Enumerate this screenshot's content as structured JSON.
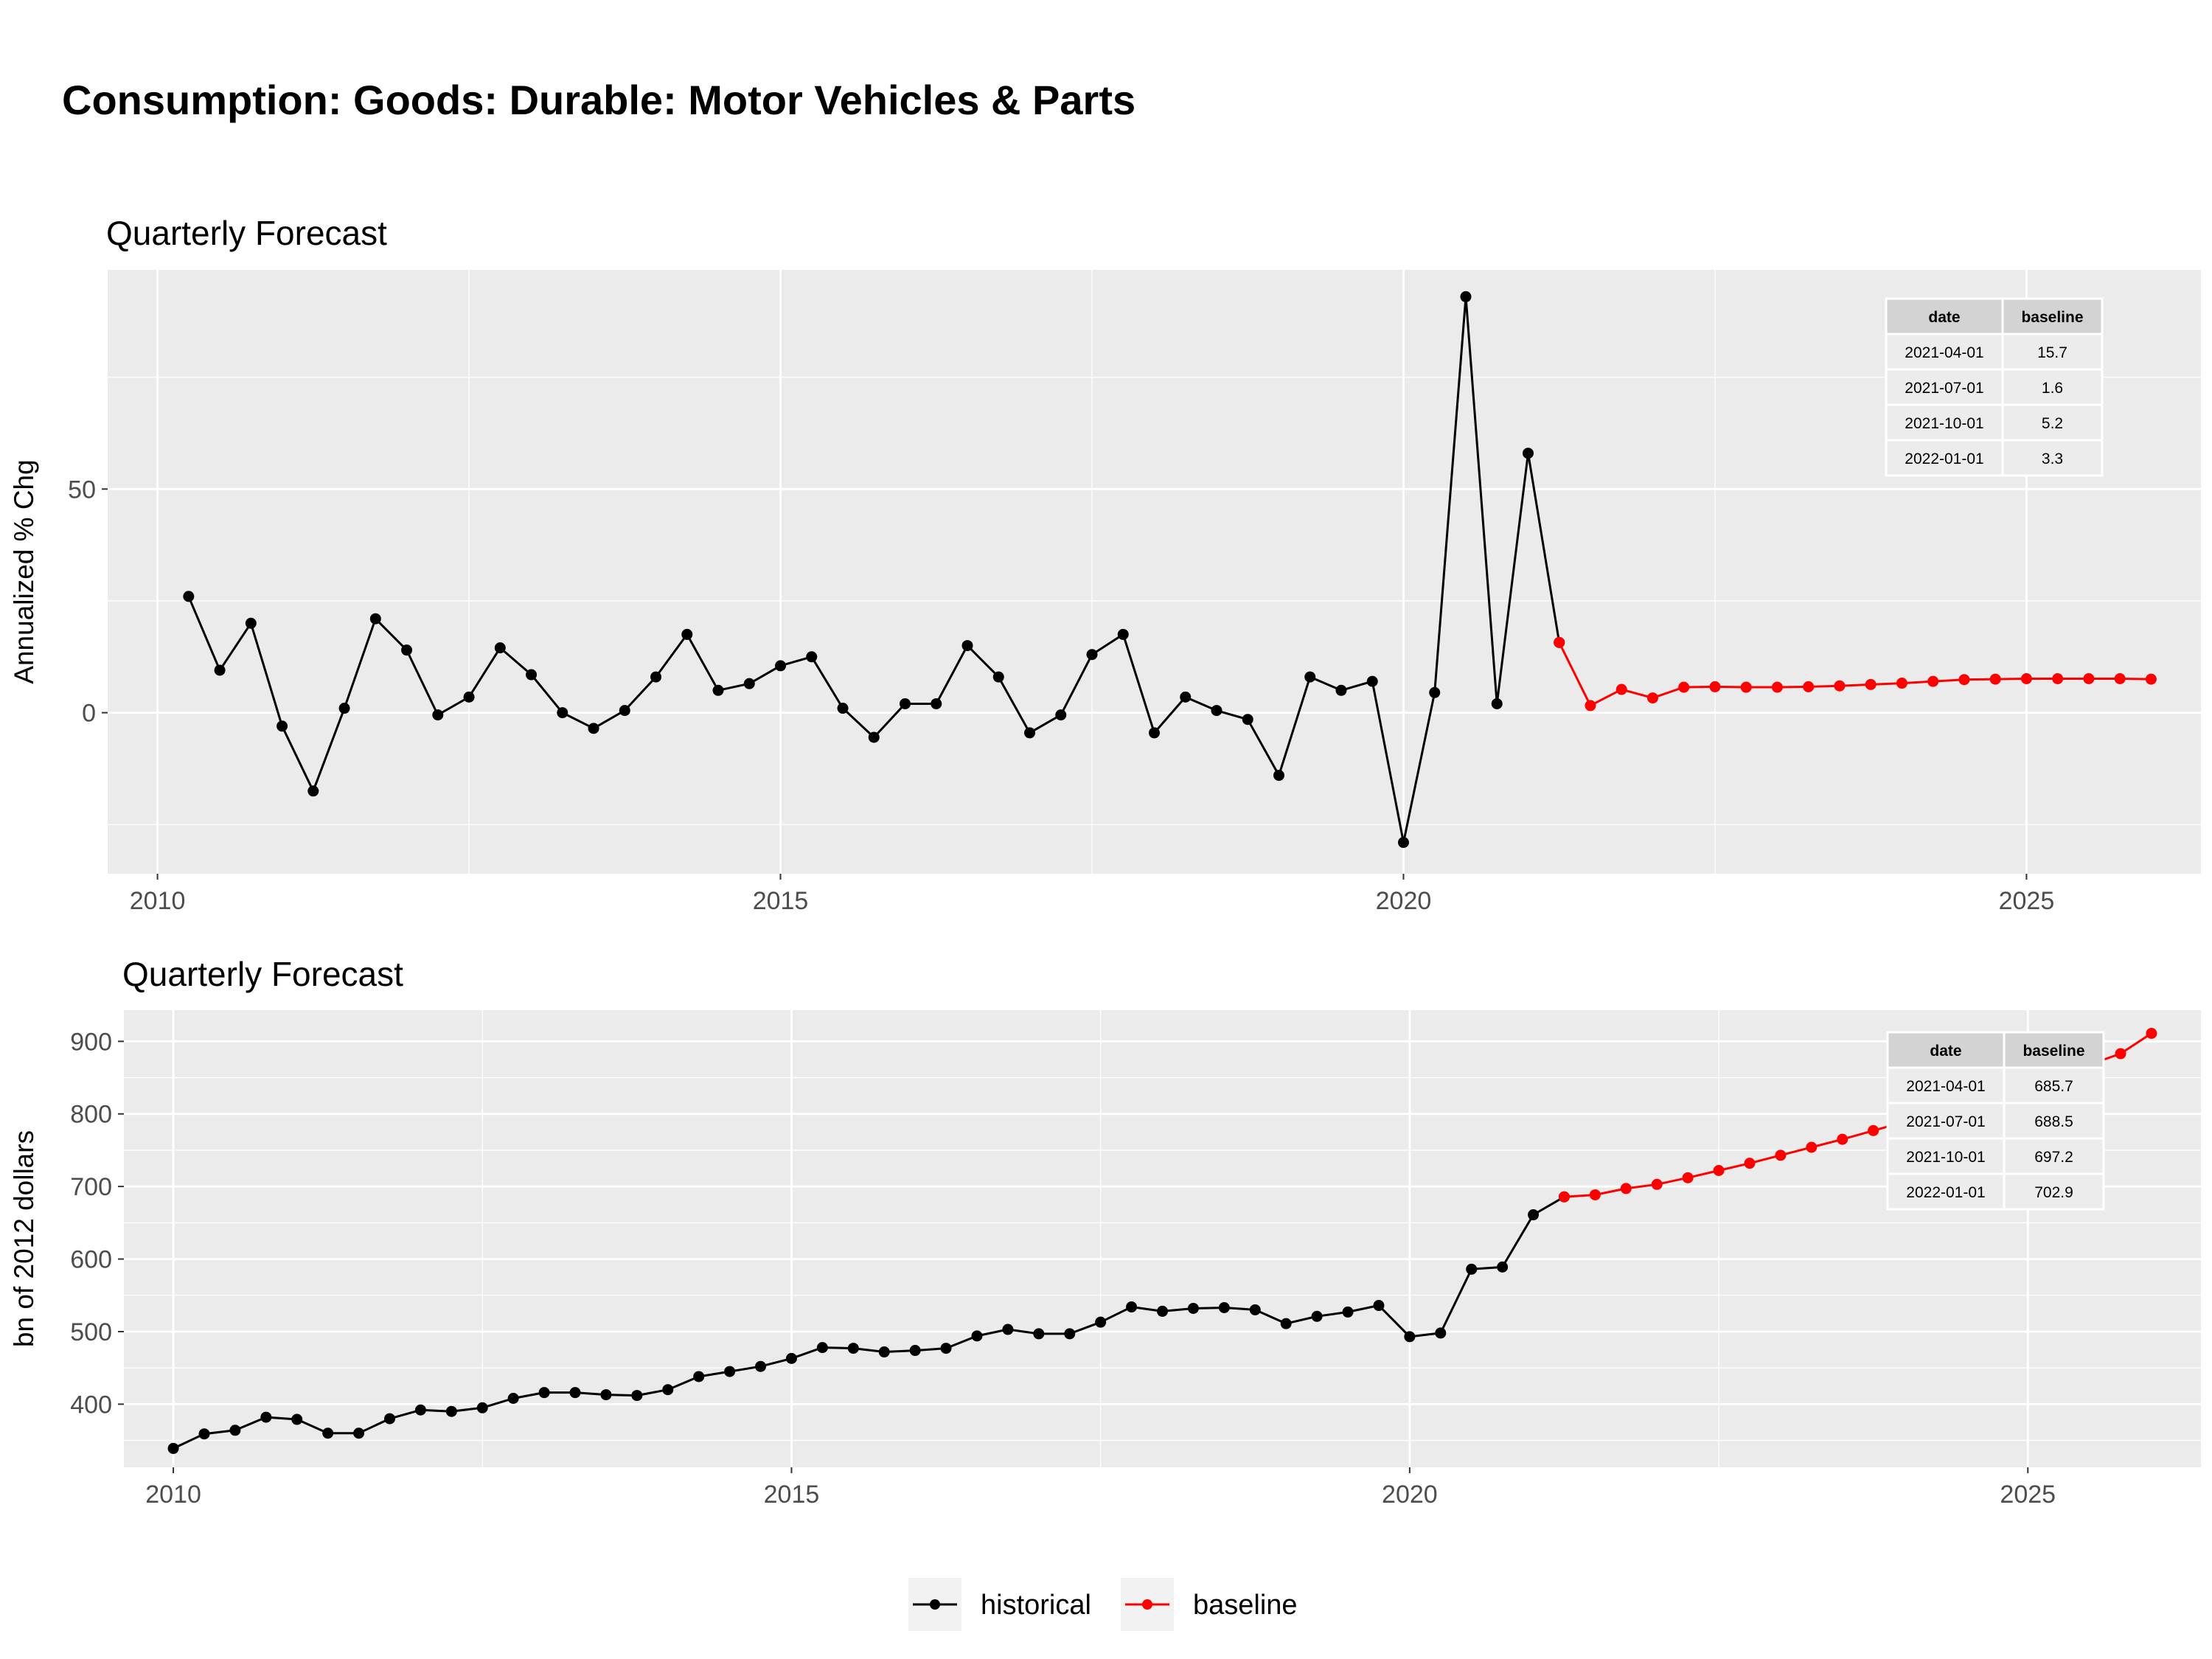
{
  "title": "Consumption: Goods: Durable: Motor Vehicles & Parts",
  "colors": {
    "historical": "#000000",
    "baseline": "#ff0000",
    "panel": "#ebebeb",
    "grid": "#ffffff"
  },
  "legend": [
    {
      "label": "historical",
      "color": "#000000"
    },
    {
      "label": "baseline",
      "color": "#ff0000"
    }
  ],
  "chart_data": [
    {
      "type": "line",
      "title": "Quarterly Forecast",
      "ylabel": "Annualized % Chg",
      "xlabel": "",
      "xlim": [
        2009.6,
        2026.4
      ],
      "ylim": [
        -36,
        99
      ],
      "x_ticks": [
        "2010",
        "2015",
        "2020",
        "2025"
      ],
      "y_ticks": [
        "0",
        "50"
      ],
      "grid": true,
      "series": [
        {
          "name": "historical",
          "x": [
            2010.25,
            2010.5,
            2010.75,
            2011.0,
            2011.25,
            2011.5,
            2011.75,
            2012.0,
            2012.25,
            2012.5,
            2012.75,
            2013.0,
            2013.25,
            2013.5,
            2013.75,
            2014.0,
            2014.25,
            2014.5,
            2014.75,
            2015.0,
            2015.25,
            2015.5,
            2015.75,
            2016.0,
            2016.25,
            2016.5,
            2016.75,
            2017.0,
            2017.25,
            2017.5,
            2017.75,
            2018.0,
            2018.25,
            2018.5,
            2018.75,
            2019.0,
            2019.25,
            2019.5,
            2019.75,
            2020.0,
            2020.25,
            2020.5,
            2020.75,
            2021.0,
            2021.25
          ],
          "values": [
            26,
            9.5,
            20,
            -3,
            -17.5,
            1,
            21,
            14,
            -0.5,
            3.5,
            14.5,
            8.5,
            0,
            -3.5,
            0.5,
            8,
            17.5,
            5,
            6.5,
            10.5,
            12.5,
            1,
            -5.5,
            2,
            2,
            15,
            8,
            -4.5,
            -0.5,
            13,
            17.5,
            -4.5,
            3.5,
            0.5,
            -1.5,
            -14,
            8,
            5,
            7,
            -29,
            4.5,
            93,
            2,
            58,
            15.7
          ]
        },
        {
          "name": "baseline",
          "x": [
            2021.25,
            2021.5,
            2021.75,
            2022.0,
            2022.25,
            2022.5,
            2022.75,
            2023.0,
            2023.25,
            2023.5,
            2023.75,
            2024.0,
            2024.25,
            2024.5,
            2024.75,
            2025.0,
            2025.25,
            2025.5,
            2025.75,
            2026.0
          ],
          "values": [
            15.7,
            1.6,
            5.2,
            3.3,
            5.7,
            5.8,
            5.7,
            5.7,
            5.8,
            6,
            6.3,
            6.6,
            7,
            7.4,
            7.5,
            7.6,
            7.6,
            7.6,
            7.6,
            7.5
          ]
        }
      ],
      "table": {
        "headers": [
          "date",
          "baseline"
        ],
        "rows": [
          [
            "2021-04-01",
            "15.7"
          ],
          [
            "2021-07-01",
            "1.6"
          ],
          [
            "2021-10-01",
            "5.2"
          ],
          [
            "2022-01-01",
            "3.3"
          ]
        ]
      }
    },
    {
      "type": "line",
      "title": "Quarterly Forecast",
      "ylabel": "bn of 2012 dollars",
      "xlabel": "",
      "xlim": [
        2009.6,
        2026.4
      ],
      "ylim": [
        313,
        943
      ],
      "x_ticks": [
        "2010",
        "2015",
        "2020",
        "2025"
      ],
      "y_ticks": [
        "400",
        "500",
        "600",
        "700",
        "800",
        "900"
      ],
      "grid": true,
      "series": [
        {
          "name": "historical",
          "x": [
            2010.0,
            2010.25,
            2010.5,
            2010.75,
            2011.0,
            2011.25,
            2011.5,
            2011.75,
            2012.0,
            2012.25,
            2012.5,
            2012.75,
            2013.0,
            2013.25,
            2013.5,
            2013.75,
            2014.0,
            2014.25,
            2014.5,
            2014.75,
            2015.0,
            2015.25,
            2015.5,
            2015.75,
            2016.0,
            2016.25,
            2016.5,
            2016.75,
            2017.0,
            2017.25,
            2017.5,
            2017.75,
            2018.0,
            2018.25,
            2018.5,
            2018.75,
            2019.0,
            2019.25,
            2019.5,
            2019.75,
            2020.0,
            2020.25,
            2020.5,
            2020.75,
            2021.0,
            2021.25
          ],
          "values": [
            339,
            359,
            364,
            382,
            379,
            360,
            360,
            380,
            392,
            390,
            395,
            408,
            416,
            416,
            413,
            412,
            420,
            438,
            445,
            452,
            463,
            478,
            477,
            472,
            474,
            477,
            494,
            503,
            497,
            497,
            513,
            534,
            528,
            532,
            533,
            530,
            511,
            521,
            527,
            536,
            493,
            498,
            586,
            589,
            661,
            685.7
          ]
        },
        {
          "name": "baseline",
          "x": [
            2021.25,
            2021.5,
            2021.75,
            2022.0,
            2022.25,
            2022.5,
            2022.75,
            2023.0,
            2023.25,
            2023.5,
            2023.75,
            2024.0,
            2024.25,
            2024.5,
            2024.75,
            2025.0,
            2025.25,
            2025.5,
            2025.75,
            2026.0
          ],
          "values": [
            685.7,
            688.5,
            697.2,
            702.9,
            712,
            722,
            732,
            743,
            754,
            765,
            777,
            789,
            801,
            814,
            827,
            840,
            855,
            868,
            883,
            911
          ]
        }
      ],
      "table": {
        "headers": [
          "date",
          "baseline"
        ],
        "rows": [
          [
            "2021-04-01",
            "685.7"
          ],
          [
            "2021-07-01",
            "688.5"
          ],
          [
            "2021-10-01",
            "697.2"
          ],
          [
            "2022-01-01",
            "702.9"
          ]
        ]
      }
    }
  ]
}
